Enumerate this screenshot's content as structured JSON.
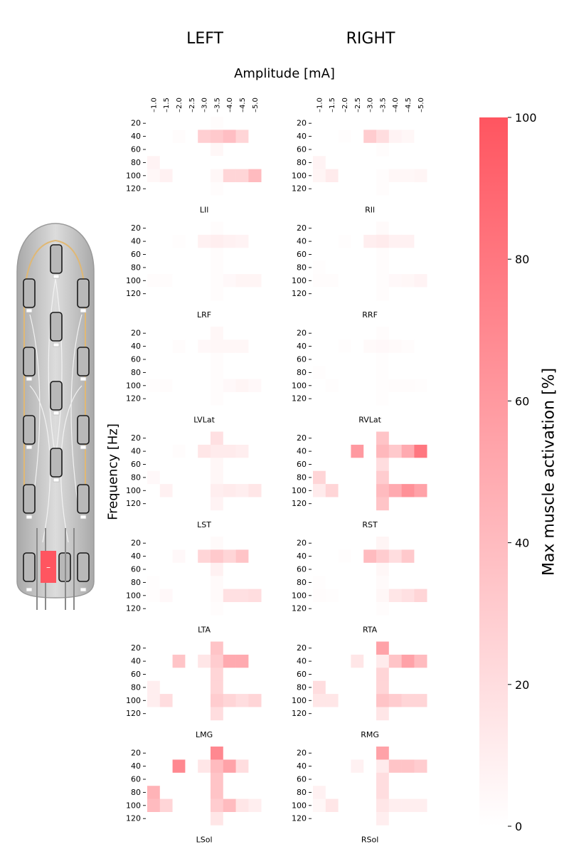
{
  "titles": {
    "left": "LEFT",
    "right": "RIGHT"
  },
  "xlabel": "Amplitude [mA]",
  "ylabel": "Frequency [Hz]",
  "colorbar": {
    "label": "Max muscle activation [%]",
    "ticks": [
      0,
      20,
      40,
      60,
      80,
      100
    ],
    "min": 0,
    "max": 100,
    "color_low": "#ffffff",
    "color_high": "#ff5560"
  },
  "device": {
    "active_electrode_color": "#ff5560",
    "active_sign": "–"
  },
  "chart_data": {
    "type": "heatmap",
    "x": [
      "-1.0",
      "-1.5",
      "-2.0",
      "-2.5",
      "-3.0",
      "-3.5",
      "-4.0",
      "-4.5",
      "-5.0"
    ],
    "x_tick_labels": [
      "–1.0",
      "–1.5",
      "–2.0",
      "–2.5",
      "–3.0",
      "–3.5",
      "–4.0",
      "–4.5",
      "–5.0"
    ],
    "y": [
      "20",
      "40",
      "60",
      "80",
      "100",
      "120"
    ],
    "value_range": [
      0,
      100
    ],
    "rows": [
      {
        "left": {
          "name": "LIl",
          "values": [
            [
              0,
              0,
              0,
              0,
              0,
              2,
              0,
              0,
              0
            ],
            [
              0,
              0,
              2,
              0,
              28,
              32,
              38,
              25,
              0
            ],
            [
              0,
              0,
              0,
              0,
              0,
              5,
              0,
              0,
              0
            ],
            [
              7,
              0,
              0,
              0,
              0,
              0,
              0,
              0,
              0
            ],
            [
              5,
              8,
              0,
              0,
              0,
              5,
              25,
              25,
              40
            ],
            [
              0,
              0,
              0,
              0,
              0,
              2,
              0,
              0,
              0
            ]
          ]
        },
        "right": {
          "name": "RIl",
          "values": [
            [
              0,
              0,
              0,
              0,
              0,
              0,
              0,
              0,
              0
            ],
            [
              0,
              0,
              1,
              0,
              30,
              20,
              7,
              5,
              0
            ],
            [
              0,
              0,
              0,
              0,
              0,
              2,
              0,
              0,
              0
            ],
            [
              7,
              0,
              0,
              0,
              0,
              0,
              0,
              0,
              0
            ],
            [
              6,
              12,
              0,
              0,
              0,
              2,
              5,
              5,
              6
            ],
            [
              0,
              0,
              0,
              0,
              0,
              2,
              0,
              0,
              0
            ]
          ]
        }
      },
      {
        "left": {
          "name": "LRF",
          "values": [
            [
              0,
              0,
              0,
              0,
              0,
              2,
              0,
              0,
              0
            ],
            [
              0,
              0,
              1,
              0,
              8,
              10,
              8,
              7,
              0
            ],
            [
              0,
              0,
              0,
              0,
              0,
              2,
              0,
              0,
              0
            ],
            [
              0,
              0,
              0,
              0,
              0,
              2,
              0,
              0,
              0
            ],
            [
              2,
              2,
              0,
              0,
              0,
              2,
              4,
              6,
              6
            ],
            [
              0,
              0,
              0,
              0,
              0,
              2,
              0,
              0,
              0
            ]
          ]
        },
        "right": {
          "name": "RRF",
          "values": [
            [
              0,
              0,
              0,
              0,
              0,
              3,
              0,
              0,
              0
            ],
            [
              0,
              0,
              1,
              0,
              10,
              12,
              8,
              8,
              0
            ],
            [
              0,
              0,
              0,
              0,
              0,
              2,
              0,
              0,
              0
            ],
            [
              1,
              0,
              0,
              0,
              0,
              2,
              0,
              0,
              0
            ],
            [
              2,
              2,
              0,
              0,
              0,
              2,
              4,
              5,
              7
            ],
            [
              0,
              0,
              0,
              0,
              0,
              2,
              0,
              0,
              0
            ]
          ]
        }
      },
      {
        "left": {
          "name": "LVLat",
          "values": [
            [
              0,
              0,
              0,
              0,
              0,
              5,
              0,
              0,
              0
            ],
            [
              0,
              0,
              2,
              0,
              4,
              5,
              5,
              5,
              0
            ],
            [
              0,
              0,
              0,
              0,
              0,
              2,
              0,
              0,
              0
            ],
            [
              0,
              0,
              0,
              0,
              0,
              2,
              0,
              0,
              0
            ],
            [
              1,
              2,
              0,
              0,
              0,
              2,
              4,
              6,
              4
            ],
            [
              0,
              0,
              0,
              0,
              0,
              2,
              0,
              0,
              0
            ]
          ]
        },
        "right": {
          "name": "RVLat",
          "values": [
            [
              0,
              0,
              0,
              0,
              0,
              2,
              0,
              0,
              0
            ],
            [
              0,
              0,
              1,
              0,
              3,
              4,
              3,
              2,
              0
            ],
            [
              0,
              0,
              0,
              0,
              0,
              1,
              0,
              0,
              0
            ],
            [
              1,
              0,
              0,
              0,
              0,
              1,
              0,
              0,
              0
            ],
            [
              0,
              1,
              0,
              0,
              0,
              1,
              2,
              2,
              1
            ],
            [
              0,
              0,
              0,
              0,
              0,
              1,
              0,
              0,
              0
            ]
          ]
        }
      },
      {
        "left": {
          "name": "LST",
          "values": [
            [
              0,
              0,
              0,
              0,
              0,
              18,
              0,
              0,
              0
            ],
            [
              0,
              0,
              2,
              0,
              15,
              12,
              12,
              10,
              0
            ],
            [
              0,
              0,
              0,
              0,
              0,
              5,
              0,
              0,
              0
            ],
            [
              4,
              0,
              0,
              0,
              0,
              5,
              0,
              0,
              0
            ],
            [
              0,
              8,
              0,
              0,
              0,
              10,
              12,
              10,
              15
            ],
            [
              0,
              0,
              0,
              0,
              0,
              7,
              0,
              0,
              0
            ]
          ]
        },
        "right": {
          "name": "RST",
          "values": [
            [
              0,
              0,
              0,
              0,
              0,
              35,
              0,
              0,
              0
            ],
            [
              0,
              0,
              0,
              60,
              0,
              42,
              32,
              50,
              80
            ],
            [
              0,
              0,
              0,
              0,
              0,
              20,
              0,
              0,
              0
            ],
            [
              25,
              0,
              0,
              0,
              0,
              30,
              0,
              0,
              0
            ],
            [
              12,
              25,
              0,
              0,
              0,
              40,
              50,
              65,
              55
            ],
            [
              0,
              0,
              0,
              0,
              0,
              35,
              0,
              0,
              0
            ]
          ]
        }
      },
      {
        "left": {
          "name": "LTA",
          "values": [
            [
              0,
              0,
              0,
              0,
              0,
              3,
              0,
              0,
              0
            ],
            [
              0,
              0,
              4,
              0,
              25,
              32,
              25,
              35,
              0
            ],
            [
              0,
              0,
              0,
              0,
              0,
              8,
              0,
              0,
              0
            ],
            [
              1,
              0,
              0,
              0,
              0,
              3,
              0,
              0,
              0
            ],
            [
              1,
              4,
              0,
              0,
              0,
              3,
              18,
              18,
              20
            ],
            [
              0,
              0,
              0,
              0,
              0,
              2,
              0,
              0,
              0
            ]
          ]
        },
        "right": {
          "name": "RTA",
          "values": [
            [
              0,
              0,
              0,
              0,
              0,
              6,
              0,
              0,
              0
            ],
            [
              0,
              0,
              1,
              0,
              40,
              30,
              20,
              32,
              0
            ],
            [
              0,
              0,
              0,
              0,
              0,
              5,
              0,
              0,
              0
            ],
            [
              1,
              0,
              0,
              0,
              0,
              3,
              0,
              0,
              0
            ],
            [
              2,
              1,
              0,
              0,
              0,
              5,
              15,
              18,
              25
            ],
            [
              0,
              0,
              0,
              0,
              0,
              2,
              0,
              0,
              0
            ]
          ]
        }
      },
      {
        "left": {
          "name": "LMG",
          "values": [
            [
              0,
              0,
              0,
              0,
              0,
              35,
              0,
              0,
              0
            ],
            [
              0,
              0,
              35,
              0,
              15,
              30,
              50,
              50,
              0
            ],
            [
              0,
              0,
              0,
              0,
              0,
              25,
              0,
              0,
              0
            ],
            [
              10,
              0,
              0,
              0,
              0,
              25,
              0,
              0,
              0
            ],
            [
              10,
              20,
              0,
              0,
              0,
              30,
              25,
              20,
              25
            ],
            [
              0,
              0,
              0,
              0,
              0,
              20,
              0,
              0,
              0
            ]
          ]
        },
        "right": {
          "name": "RMG",
          "values": [
            [
              0,
              0,
              0,
              0,
              0,
              55,
              0,
              0,
              0
            ],
            [
              0,
              0,
              0,
              15,
              0,
              12,
              35,
              55,
              40
            ],
            [
              0,
              0,
              0,
              0,
              0,
              25,
              0,
              0,
              0
            ],
            [
              20,
              0,
              0,
              0,
              0,
              25,
              0,
              0,
              0
            ],
            [
              15,
              15,
              0,
              0,
              0,
              35,
              30,
              25,
              25
            ],
            [
              0,
              0,
              0,
              0,
              0,
              15,
              0,
              0,
              0
            ]
          ]
        }
      },
      {
        "left": {
          "name": "LSol",
          "values": [
            [
              0,
              0,
              0,
              0,
              0,
              70,
              0,
              0,
              0
            ],
            [
              0,
              0,
              70,
              0,
              15,
              40,
              55,
              20,
              0
            ],
            [
              0,
              0,
              0,
              0,
              0,
              35,
              0,
              0,
              0
            ],
            [
              45,
              0,
              0,
              0,
              0,
              35,
              0,
              0,
              0
            ],
            [
              40,
              25,
              0,
              0,
              0,
              30,
              40,
              15,
              10
            ],
            [
              0,
              0,
              0,
              0,
              0,
              15,
              0,
              0,
              0
            ]
          ]
        },
        "right": {
          "name": "RSol",
          "values": [
            [
              0,
              0,
              0,
              0,
              0,
              55,
              0,
              0,
              0
            ],
            [
              0,
              0,
              0,
              8,
              0,
              12,
              35,
              35,
              30
            ],
            [
              0,
              0,
              0,
              0,
              0,
              20,
              0,
              0,
              0
            ],
            [
              8,
              0,
              0,
              0,
              0,
              20,
              0,
              0,
              0
            ],
            [
              5,
              15,
              0,
              0,
              0,
              15,
              10,
              10,
              10
            ],
            [
              0,
              0,
              0,
              0,
              0,
              10,
              0,
              0,
              0
            ]
          ]
        }
      }
    ]
  }
}
